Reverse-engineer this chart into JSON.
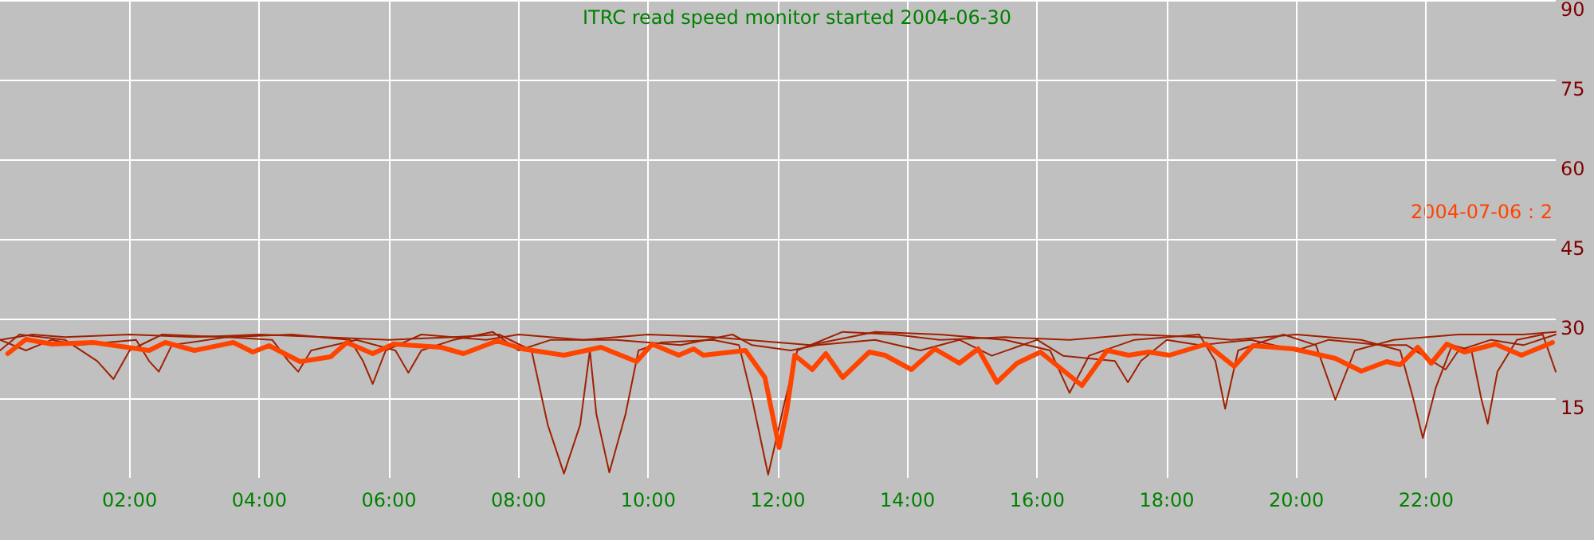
{
  "chart_data": {
    "type": "line",
    "title": "ITRC read speed monitor started 2004-06-30",
    "annotations": [
      "2004-07-06 : 2"
    ],
    "xlim": [
      0,
      24
    ],
    "xticks": [
      {
        "value": 2,
        "label": "02:00"
      },
      {
        "value": 4,
        "label": "04:00"
      },
      {
        "value": 6,
        "label": "06:00"
      },
      {
        "value": 8,
        "label": "08:00"
      },
      {
        "value": 10,
        "label": "10:00"
      },
      {
        "value": 12,
        "label": "12:00"
      },
      {
        "value": 14,
        "label": "14:00"
      },
      {
        "value": 16,
        "label": "16:00"
      },
      {
        "value": 18,
        "label": "18:00"
      },
      {
        "value": 20,
        "label": "20:00"
      },
      {
        "value": 22,
        "label": "22:00"
      }
    ],
    "ylim": [
      0,
      90
    ],
    "yticks": [
      15,
      30,
      45,
      60,
      75,
      90
    ],
    "grid": true,
    "marker": "none",
    "line_style": "solid",
    "series": [
      {
        "color": "#a02000",
        "x": [
          0,
          0.5,
          1,
          2,
          3,
          4,
          5,
          6,
          7,
          7.7,
          8.2,
          8.45,
          8.7,
          8.95,
          9.1,
          9.2,
          9.4,
          9.65,
          9.85,
          10.2,
          11,
          11.4,
          11.6,
          11.85,
          12.1,
          12.3,
          13,
          13.8,
          14.5,
          15.5,
          16.5,
          17.5,
          18.5,
          19,
          20,
          21,
          21.6,
          21.8,
          21.95,
          22.15,
          22.4,
          22.7,
          22.85,
          22.95,
          23.1,
          23.4,
          23.8,
          24
        ],
        "values": [
          26,
          27,
          26.5,
          27,
          26.5,
          27,
          26.5,
          26,
          26.5,
          27,
          24,
          10,
          0.8,
          10,
          24,
          12,
          1,
          12,
          24,
          25.5,
          26,
          25,
          15,
          0.6,
          14,
          24,
          27.5,
          27,
          26,
          26.5,
          26,
          27,
          26.5,
          26,
          27,
          26,
          24,
          15,
          7.5,
          17,
          25,
          24,
          15,
          10.2,
          20,
          26,
          27,
          20
        ]
      },
      {
        "color": "#a02000",
        "x": [
          0,
          0.3,
          1,
          1.5,
          1.75,
          2,
          2.5,
          3.5,
          4.5,
          5.4,
          5.6,
          5.75,
          5.95,
          6.5,
          7.5,
          8,
          9,
          10,
          11,
          12.5,
          13.5,
          14.5,
          15.5,
          16.2,
          16.5,
          16.8,
          17.5,
          18.5,
          18.75,
          18.9,
          19.1,
          19.8,
          20.3,
          20.6,
          20.9,
          21.5,
          22.5,
          23.5,
          24
        ],
        "values": [
          24,
          27,
          26,
          22,
          18.6,
          24,
          27,
          26.5,
          27,
          26,
          22,
          17.7,
          24,
          27,
          26,
          27,
          26,
          27,
          26.5,
          25,
          27.5,
          27,
          26,
          24,
          16,
          23,
          26,
          27,
          22,
          13,
          24,
          27,
          25,
          14.7,
          24,
          26,
          27,
          27,
          27.5
        ]
      },
      {
        "color": "#a02000",
        "x": [
          0,
          0.4,
          0.8,
          1.2,
          2.1,
          2.3,
          2.45,
          2.65,
          3.5,
          4.2,
          4.45,
          4.6,
          4.8,
          5.5,
          6.1,
          6.3,
          6.5,
          7,
          7.6,
          8,
          8.5,
          9.5,
          10.5,
          11.3,
          11.6,
          12.2,
          12.6,
          13.5,
          14.2,
          14.8,
          15.3,
          16,
          16.4,
          17.2,
          17.4,
          17.6,
          18,
          18.5,
          19.3,
          20,
          20.5,
          21.3,
          21.7,
          22.3,
          22.5,
          23,
          23.5,
          24
        ],
        "values": [
          26,
          24,
          26,
          25,
          26,
          22,
          20,
          25,
          26.5,
          26,
          22,
          20,
          24,
          26,
          24,
          19.8,
          24,
          26,
          27.5,
          24,
          26,
          26,
          25,
          27,
          25,
          24,
          25,
          26,
          24,
          26,
          23,
          26,
          23,
          22,
          18,
          22,
          26,
          25,
          26,
          24,
          26,
          25,
          25,
          20.4,
          24,
          26,
          25,
          27
        ]
      },
      {
        "color": "#ff4400",
        "x": [
          0.12,
          0.4,
          0.8,
          1.44,
          2.3,
          2.55,
          3,
          3.6,
          3.9,
          4.15,
          4.63,
          5.1,
          5.35,
          5.75,
          6.07,
          6.8,
          7.15,
          7.67,
          8.06,
          8.7,
          9.27,
          9.82,
          10.06,
          10.47,
          10.7,
          10.85,
          11.5,
          11.8,
          12.02,
          12.14,
          12.26,
          12.53,
          12.74,
          13,
          13.41,
          13.65,
          14.06,
          14.42,
          14.8,
          15.09,
          15.38,
          15.69,
          16.05,
          16.69,
          17.08,
          17.41,
          17.72,
          18.04,
          18.61,
          19.04,
          19.33,
          19.95,
          20.6,
          21,
          21.39,
          21.6,
          21.87,
          22.08,
          22.32,
          22.59,
          23.07,
          23.47,
          23.95
        ],
        "values": [
          23.4,
          26.1,
          25.2,
          25.5,
          24,
          25.5,
          24,
          25.5,
          23.7,
          24.9,
          21.9,
          22.8,
          25.5,
          23.4,
          25.2,
          24.6,
          23.4,
          25.8,
          24.3,
          23.1,
          24.6,
          21.9,
          25.2,
          23.1,
          24.3,
          23.1,
          24,
          18.9,
          5.7,
          12.9,
          23.1,
          20.4,
          23.4,
          18.9,
          23.7,
          23.1,
          20.4,
          24.3,
          21.6,
          24.3,
          18,
          21.6,
          23.7,
          17.4,
          24,
          23.1,
          23.7,
          23.1,
          25.2,
          21,
          24.9,
          24.3,
          22.5,
          20.1,
          21.9,
          21.3,
          24.6,
          21.6,
          25.2,
          23.7,
          25.2,
          23.1,
          25.5
        ]
      }
    ]
  }
}
